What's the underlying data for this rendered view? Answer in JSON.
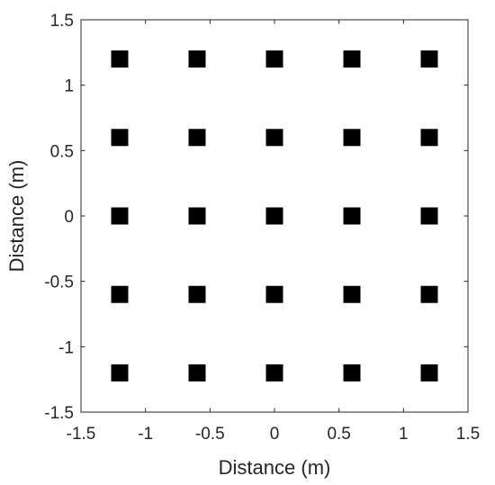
{
  "chart_data": {
    "type": "scatter",
    "title": "",
    "xlabel": "Distance (m)",
    "ylabel": "Distance (m)",
    "xlim": [
      -1.5,
      1.5
    ],
    "ylim": [
      -1.5,
      1.5
    ],
    "xticks": [
      -1.5,
      -1,
      -0.5,
      0,
      0.5,
      1,
      1.5
    ],
    "yticks": [
      -1.5,
      -1,
      -0.5,
      0,
      0.5,
      1,
      1.5
    ],
    "xtick_labels": [
      "-1.5",
      "-1",
      "-0.5",
      "0",
      "0.5",
      "1",
      "1.5"
    ],
    "ytick_labels": [
      "-1.5",
      "-1",
      "-0.5",
      "0",
      "0.5",
      "1",
      "1.5"
    ],
    "grid": false,
    "marker": "square",
    "marker_color": "#000000",
    "points": [
      {
        "x": -1.2,
        "y": 1.2
      },
      {
        "x": -0.6,
        "y": 1.2
      },
      {
        "x": 0,
        "y": 1.2
      },
      {
        "x": 0.6,
        "y": 1.2
      },
      {
        "x": 1.2,
        "y": 1.2
      },
      {
        "x": -1.2,
        "y": 0.6
      },
      {
        "x": -0.6,
        "y": 0.6
      },
      {
        "x": 0,
        "y": 0.6
      },
      {
        "x": 0.6,
        "y": 0.6
      },
      {
        "x": 1.2,
        "y": 0.6
      },
      {
        "x": -1.2,
        "y": 0
      },
      {
        "x": -0.6,
        "y": 0
      },
      {
        "x": 0,
        "y": 0
      },
      {
        "x": 0.6,
        "y": 0
      },
      {
        "x": 1.2,
        "y": 0
      },
      {
        "x": -1.2,
        "y": -0.6
      },
      {
        "x": -0.6,
        "y": -0.6
      },
      {
        "x": 0,
        "y": -0.6
      },
      {
        "x": 0.6,
        "y": -0.6
      },
      {
        "x": 1.2,
        "y": -0.6
      },
      {
        "x": -1.2,
        "y": -1.2
      },
      {
        "x": -0.6,
        "y": -1.2
      },
      {
        "x": 0,
        "y": -1.2
      },
      {
        "x": 0.6,
        "y": -1.2
      },
      {
        "x": 1.2,
        "y": -1.2
      }
    ]
  }
}
